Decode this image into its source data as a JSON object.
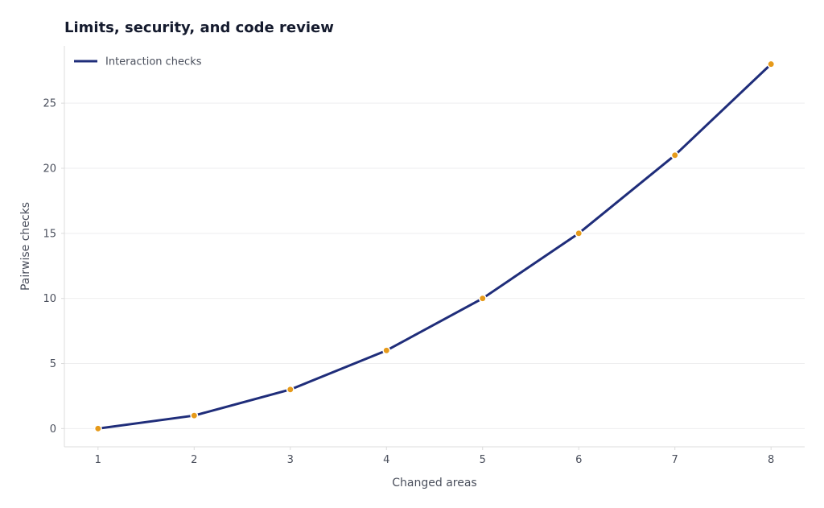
{
  "chart_data": {
    "type": "line",
    "title": "Limits, security, and code review",
    "xlabel": "Changed areas",
    "ylabel": "Pairwise checks",
    "x": [
      1,
      2,
      3,
      4,
      5,
      6,
      7,
      8
    ],
    "series": [
      {
        "name": "Interaction checks",
        "values": [
          0,
          1,
          3,
          6,
          10,
          15,
          21,
          28
        ],
        "line_color": "#1f2d7a",
        "marker_color": "#e69a1a"
      }
    ],
    "xlim": [
      0.65,
      8.35
    ],
    "ylim": [
      -1.4,
      29.4
    ],
    "xticks": [
      1,
      2,
      3,
      4,
      5,
      6,
      7,
      8
    ],
    "yticks": [
      0,
      5,
      10,
      15,
      20,
      25
    ],
    "grid": "horizontal",
    "legend_position": "top-left"
  },
  "colors": {
    "title": "#151b2e",
    "text": "#4a4f5c",
    "grid": "#eeeeef",
    "axis": "#dcdcdc"
  }
}
